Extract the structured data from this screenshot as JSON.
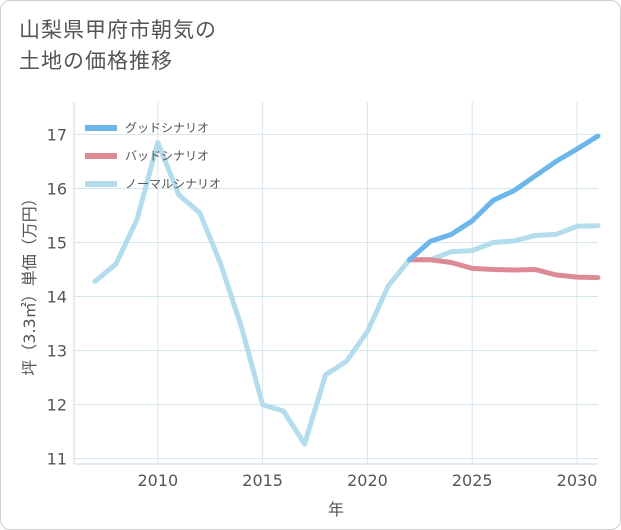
{
  "title_lines": [
    "山梨県甲府市朝気の",
    "土地の価格推移"
  ],
  "chart_data": {
    "type": "line",
    "title": "山梨県甲府市朝気の土地の価格推移",
    "xlabel": "年",
    "ylabel": "坪（3.3㎡）単価（万円）",
    "xlim": [
      2006,
      2031
    ],
    "ylim": [
      10.9,
      17.6
    ],
    "xticks": [
      2010,
      2015,
      2020,
      2025,
      2030
    ],
    "yticks": [
      11,
      12,
      13,
      14,
      15,
      16,
      17
    ],
    "grid": true,
    "legend_position": "top-left",
    "series": [
      {
        "name": "グッドシナリオ",
        "color": "#6cb6e9",
        "points": [
          [
            2022,
            14.68
          ],
          [
            2023,
            15.02
          ],
          [
            2024,
            15.15
          ],
          [
            2025,
            15.4
          ],
          [
            2026,
            15.78
          ],
          [
            2027,
            15.96
          ],
          [
            2028,
            16.23
          ],
          [
            2029,
            16.5
          ],
          [
            2030,
            16.73
          ],
          [
            2031,
            16.97
          ]
        ]
      },
      {
        "name": "バッドシナリオ",
        "color": "#de8a95",
        "points": [
          [
            2022,
            14.68
          ],
          [
            2023,
            14.68
          ],
          [
            2024,
            14.63
          ],
          [
            2025,
            14.52
          ],
          [
            2026,
            14.5
          ],
          [
            2027,
            14.49
          ],
          [
            2028,
            14.5
          ],
          [
            2029,
            14.4
          ],
          [
            2030,
            14.36
          ],
          [
            2031,
            14.35
          ]
        ]
      },
      {
        "name": "ノーマルシナリオ",
        "color": "#b3dced",
        "points": [
          [
            2007,
            14.28
          ],
          [
            2008,
            14.6
          ],
          [
            2009,
            15.42
          ],
          [
            2010,
            16.85
          ],
          [
            2011,
            15.88
          ],
          [
            2012,
            15.55
          ],
          [
            2013,
            14.6
          ],
          [
            2014,
            13.42
          ],
          [
            2015,
            12.0
          ],
          [
            2016,
            11.88
          ],
          [
            2017,
            11.27
          ],
          [
            2018,
            12.55
          ],
          [
            2019,
            12.8
          ],
          [
            2020,
            13.35
          ],
          [
            2021,
            14.2
          ],
          [
            2022,
            14.68
          ],
          [
            2023,
            14.68
          ],
          [
            2024,
            14.83
          ],
          [
            2025,
            14.85
          ],
          [
            2026,
            15.0
          ],
          [
            2027,
            15.03
          ],
          [
            2028,
            15.13
          ],
          [
            2029,
            15.15
          ],
          [
            2030,
            15.3
          ],
          [
            2031,
            15.31
          ]
        ]
      }
    ]
  }
}
